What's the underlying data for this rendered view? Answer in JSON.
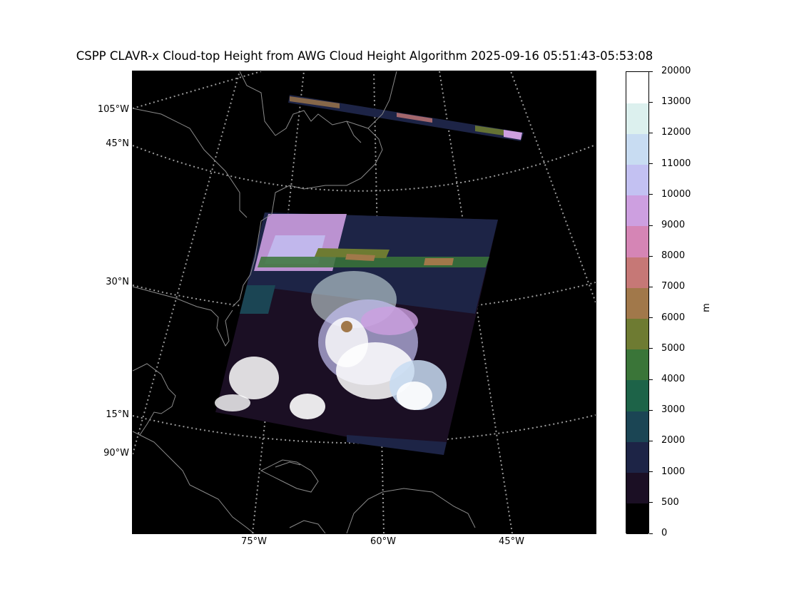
{
  "title": "CSPP CLAVR-x Cloud-top Height from AWG Cloud Height Algorithm 2025-09-16 05:51:43-05:53:08",
  "map": {
    "lat_labels": [
      "45°N",
      "30°N",
      "15°N"
    ],
    "lon_left_labels": [
      "105°W",
      "90°W"
    ],
    "lon_bottom_labels": [
      "75°W",
      "60°W",
      "45°W"
    ],
    "background": "#000000",
    "coastline_color": "#8a8a8a",
    "gridline_color": "#9a9a9a"
  },
  "colorbar": {
    "unit": "m",
    "ticks": [
      "0",
      "500",
      "1000",
      "2000",
      "3000",
      "4000",
      "5000",
      "6000",
      "7000",
      "8000",
      "9000",
      "10000",
      "11000",
      "12000",
      "13000",
      "20000"
    ],
    "colors": [
      "#000000",
      "#1b0f24",
      "#1d2446",
      "#1b4554",
      "#1d6348",
      "#3a7538",
      "#6e7b32",
      "#a1784a",
      "#c67876",
      "#d585b5",
      "#cd9fe0",
      "#c3c1f2",
      "#c8dcf2",
      "#dcf0ee",
      "#ffffff"
    ]
  }
}
